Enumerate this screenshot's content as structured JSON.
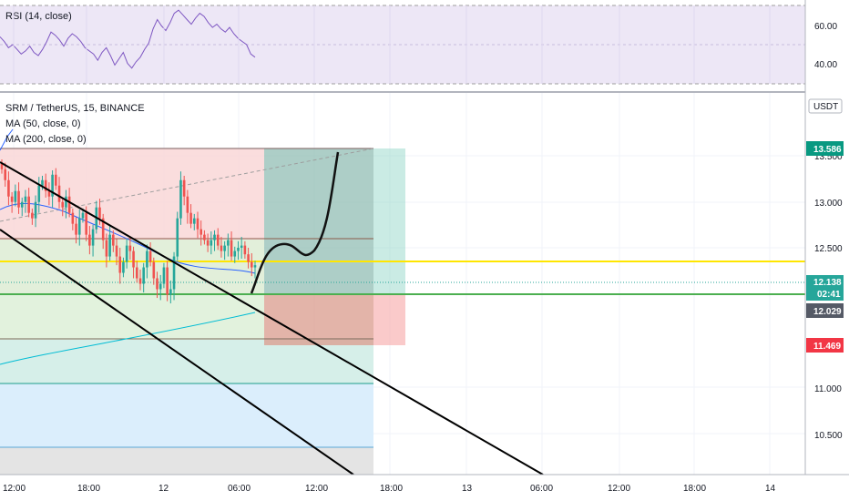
{
  "rsi_pane": {
    "title": "RSI (14, close)",
    "levels": [
      "60.00",
      "40.00"
    ],
    "values": [
      55,
      52,
      48,
      50,
      47,
      44,
      46,
      49,
      45,
      43,
      47,
      52,
      58,
      56,
      53,
      49,
      54,
      57,
      55,
      52,
      48,
      46,
      44,
      40,
      45,
      48,
      43,
      37,
      41,
      45,
      38,
      35,
      39,
      42,
      47,
      51,
      60,
      66,
      62,
      59,
      64,
      70,
      72,
      69,
      66,
      63,
      67,
      70,
      68,
      64,
      61,
      63,
      60,
      58,
      61,
      57,
      54,
      52,
      50,
      44,
      42
    ]
  },
  "main_pane": {
    "symbol_line": "SRM / TetherUS, 15, BINANCE",
    "ma50": "MA (50, close, 0)",
    "ma200": "MA (200, close, 0)",
    "currency": "USDT",
    "price_ticks": [
      "13.500",
      "13.000",
      "12.500",
      "11.000",
      "10.500"
    ],
    "time_ticks": [
      "12:00",
      "18:00",
      "12",
      "06:00",
      "12:00",
      "18:00",
      "13",
      "06:00",
      "12:00",
      "18:00",
      "14"
    ],
    "tags": {
      "target": {
        "text": "13.586",
        "color": "#089981"
      },
      "current": {
        "text": "12.138",
        "countdown": "02:41",
        "color": "#26a69a"
      },
      "entry": {
        "text": "12.029",
        "color": "#555a66"
      },
      "stop": {
        "text": "11.469",
        "color": "#f23645"
      }
    },
    "colors": {
      "up": "#26a69a",
      "down": "#ef5350",
      "ma50": "#2962ff",
      "ma200": "#00bcd4",
      "yellow_line": "#ffd600",
      "green_line": "#4caf50"
    }
  },
  "chart_data": {
    "type": "candlestick",
    "symbol": "SRM / TetherUS",
    "interval": "15",
    "exchange": "BINANCE",
    "ylim": [
      10.2,
      13.7
    ],
    "levels": {
      "target": 13.586,
      "current": 12.138,
      "entry": 12.029,
      "stop": 11.469,
      "yellow": 12.35,
      "fib_a": 12.62,
      "fib_b": 11.48,
      "fib_c": 11.05,
      "fib_d": 10.38
    },
    "closes": [
      13.0,
      12.9,
      12.75,
      12.7,
      12.8,
      12.65,
      12.7,
      12.75,
      12.6,
      12.55,
      12.7,
      12.85,
      12.9,
      12.8,
      12.75,
      12.95,
      12.85,
      12.7,
      12.65,
      12.75,
      12.6,
      12.5,
      12.4,
      12.55,
      12.6,
      12.4,
      12.3,
      12.45,
      12.65,
      12.55,
      12.35,
      12.2,
      12.4,
      12.3,
      12.2,
      12.05,
      12.15,
      12.3,
      12.25,
      12.1,
      12.0,
      11.95,
      12.1,
      12.25,
      12.15,
      12.0,
      11.9,
      11.95,
      12.1,
      11.85,
      11.9,
      12.2,
      12.55,
      12.9,
      12.75,
      12.6,
      12.5,
      12.55,
      12.45,
      12.4,
      12.35,
      12.3,
      12.35,
      12.4,
      12.3,
      12.25,
      12.3,
      12.35,
      12.2,
      12.25,
      12.28,
      12.3,
      12.22,
      12.15,
      12.1,
      12.12
    ]
  }
}
